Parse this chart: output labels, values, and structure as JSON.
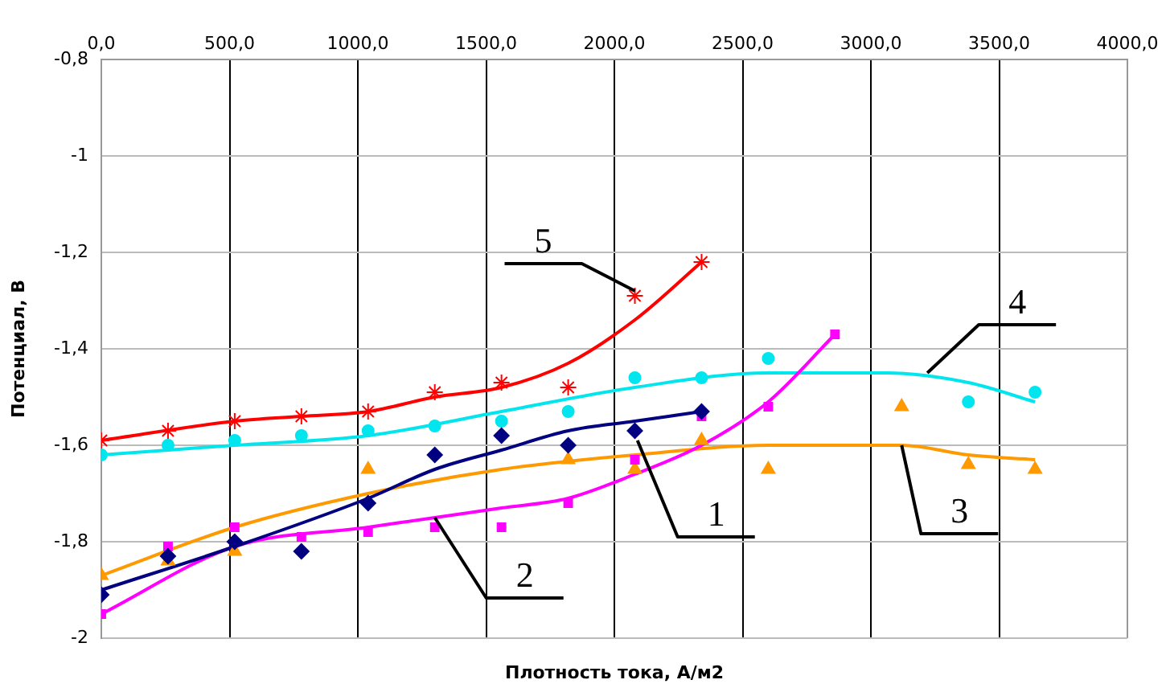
{
  "chart_data": {
    "type": "scatter",
    "xlabel": "Плотность тока, А/м2",
    "ylabel": "Потенциал, В",
    "xlim": [
      0,
      4000
    ],
    "xticks": [
      {
        "value": 0,
        "label": "0,0"
      },
      {
        "value": 500,
        "label": "500,0"
      },
      {
        "value": 1000,
        "label": "1000,0"
      },
      {
        "value": 1500,
        "label": "1500,0"
      },
      {
        "value": 2000,
        "label": "2000,0"
      },
      {
        "value": 2500,
        "label": "2500,0"
      },
      {
        "value": 3000,
        "label": "3000,0"
      },
      {
        "value": 3500,
        "label": "3500,0"
      },
      {
        "value": 4000,
        "label": "4000,0"
      }
    ],
    "ylim": [
      -2,
      -0.8
    ],
    "yticks": [
      {
        "value": -0.8,
        "label": "-0,8"
      },
      -1,
      {
        "value": -1.2,
        "label": "-1,2"
      },
      {
        "value": -1.4,
        "label": "-1,4"
      },
      {
        "value": -1.6,
        "label": "-1,6"
      },
      {
        "value": -1.8,
        "label": "-1,8"
      },
      -2
    ],
    "grid": true,
    "legend": false,
    "series": [
      {
        "type": "scatter",
        "marker": "diamond",
        "color": "#000080",
        "x": [
          0,
          260,
          520,
          780,
          1040,
          1300,
          1560,
          1820,
          2080,
          2340
        ],
        "values": [
          -1.91,
          -1.83,
          -1.8,
          -1.82,
          -1.72,
          -1.62,
          -1.58,
          -1.6,
          -1.57,
          -1.53
        ]
      },
      {
        "type": "scatter",
        "marker": "square",
        "color": "#ff00ff",
        "x": [
          0,
          260,
          520,
          780,
          1040,
          1300,
          1560,
          1820,
          2080,
          2340,
          2600,
          2860
        ],
        "values": [
          -1.95,
          -1.81,
          -1.77,
          -1.79,
          -1.78,
          -1.77,
          -1.77,
          -1.72,
          -1.63,
          -1.54,
          -1.52,
          -1.37
        ]
      },
      {
        "type": "scatter",
        "marker": "triangle",
        "color": "#ff9900",
        "x": [
          0,
          260,
          520,
          1040,
          1820,
          2080,
          2340,
          2600,
          3120,
          3380,
          3640
        ],
        "values": [
          -1.87,
          -1.84,
          -1.82,
          -1.65,
          -1.63,
          -1.65,
          -1.59,
          -1.65,
          -1.52,
          -1.64,
          -1.65
        ]
      },
      {
        "type": "scatter",
        "marker": "circle",
        "color": "#00e5ee",
        "x": [
          0,
          260,
          520,
          780,
          1040,
          1300,
          1560,
          1820,
          2080,
          2340,
          2600,
          3380,
          3640
        ],
        "values": [
          -1.62,
          -1.6,
          -1.59,
          -1.58,
          -1.57,
          -1.56,
          -1.55,
          -1.53,
          -1.46,
          -1.46,
          -1.42,
          -1.51,
          -1.49
        ]
      },
      {
        "type": "scatter",
        "marker": "cross",
        "color": "#ff0000",
        "x": [
          0,
          260,
          520,
          780,
          1040,
          1300,
          1560,
          1820,
          2080,
          2340
        ],
        "values": [
          -1.59,
          -1.57,
          -1.55,
          -1.54,
          -1.53,
          -1.49,
          -1.47,
          -1.48,
          -1.29,
          -1.22
        ]
      },
      {
        "type": "line",
        "marker": "none",
        "color": "#000080",
        "x": [
          0,
          520,
          1040,
          1300,
          1560,
          1820,
          2080,
          2340
        ],
        "values": [
          -1.9,
          -1.81,
          -1.71,
          -1.65,
          -1.61,
          -1.57,
          -1.55,
          -1.53
        ]
      },
      {
        "type": "line",
        "marker": "none",
        "color": "#ff00ff",
        "x": [
          0,
          520,
          1040,
          1300,
          1560,
          1820,
          2080,
          2340,
          2600,
          2860
        ],
        "values": [
          -1.95,
          -1.81,
          -1.77,
          -1.75,
          -1.73,
          -1.71,
          -1.66,
          -1.6,
          -1.51,
          -1.37
        ]
      },
      {
        "type": "line",
        "marker": "none",
        "color": "#ff9900",
        "x": [
          0,
          520,
          1040,
          1560,
          2080,
          2600,
          3120,
          3380,
          3640
        ],
        "values": [
          -1.87,
          -1.77,
          -1.7,
          -1.65,
          -1.62,
          -1.6,
          -1.6,
          -1.62,
          -1.63
        ]
      },
      {
        "type": "line",
        "marker": "none",
        "color": "#00e5ee",
        "x": [
          0,
          520,
          1040,
          1560,
          2080,
          2600,
          3060,
          3380,
          3640
        ],
        "values": [
          -1.62,
          -1.6,
          -1.58,
          -1.53,
          -1.48,
          -1.45,
          -1.45,
          -1.47,
          -1.51
        ]
      },
      {
        "type": "line",
        "marker": "none",
        "color": "#ff0000",
        "x": [
          0,
          520,
          780,
          1040,
          1300,
          1560,
          1820,
          2080,
          2340
        ],
        "values": [
          -1.59,
          -1.55,
          -1.54,
          -1.53,
          -1.5,
          -1.48,
          -1.43,
          -1.34,
          -1.22
        ]
      }
    ],
    "annotations": [
      {
        "text": "1",
        "x": 2090,
        "y": -1.59
      },
      {
        "text": "2",
        "x": 1300,
        "y": -1.75
      },
      {
        "text": "3",
        "x": 3120,
        "y": -1.6
      },
      {
        "text": "4",
        "x": 3220,
        "y": -1.45
      },
      {
        "text": "5",
        "x": 2080,
        "y": -1.28
      }
    ]
  }
}
